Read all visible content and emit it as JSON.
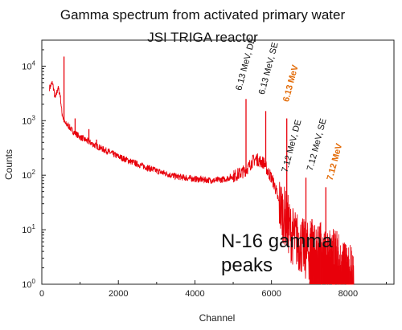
{
  "chart_data": {
    "type": "line",
    "title": "Gamma spectrum from activated primary water",
    "subtitle": "JSI TRIGA reactor",
    "xlabel": "Channel",
    "ylabel": "Counts",
    "xlim": [
      0,
      9200
    ],
    "ylim": [
      1,
      30000
    ],
    "yscale": "log",
    "grid": false,
    "x_ticks": [
      "0",
      "2000",
      "4000",
      "6000",
      "8000"
    ],
    "y_ticks": [
      {
        "base": "10",
        "exp": "0"
      },
      {
        "base": "10",
        "exp": "1"
      },
      {
        "base": "10",
        "exp": "2"
      },
      {
        "base": "10",
        "exp": "3"
      },
      {
        "base": "10",
        "exp": "4"
      }
    ],
    "series": [
      {
        "color": "#e8000b",
        "x": [
          200,
          280,
          350,
          420,
          480,
          520,
          560,
          600,
          700,
          800,
          1000,
          1200,
          1400,
          1600,
          2000,
          2500,
          3000,
          3500,
          4000,
          4500,
          4800,
          5000,
          5200,
          5300,
          5400,
          5500,
          5600,
          5700,
          5800,
          5900,
          6000,
          6100,
          6200,
          6300,
          6400,
          6500,
          6600,
          6700,
          6800,
          6900,
          7000,
          7200,
          7400,
          7600,
          7800,
          8000,
          8150
        ],
        "y": [
          4000,
          5000,
          2500,
          4000,
          3000,
          1500,
          1100,
          900,
          800,
          650,
          500,
          420,
          350,
          300,
          220,
          160,
          120,
          95,
          85,
          80,
          85,
          95,
          110,
          120,
          140,
          180,
          200,
          180,
          170,
          120,
          90,
          60,
          30,
          20,
          15,
          9,
          7,
          6,
          5,
          4,
          4,
          3.5,
          3,
          2.5,
          2,
          1.5,
          1
        ]
      }
    ],
    "peaks": [
      {
        "x": 580,
        "y": 15000
      },
      {
        "x": 870,
        "y": 1100
      },
      {
        "x": 1230,
        "y": 700
      },
      {
        "x": 1430,
        "y": 450
      },
      {
        "x": 5335,
        "y": 2500
      },
      {
        "x": 5850,
        "y": 1500
      },
      {
        "x": 6400,
        "y": 1100
      },
      {
        "x": 6900,
        "y": 90
      },
      {
        "x": 7420,
        "y": 60
      }
    ],
    "annotations": [
      {
        "text": "6.13 MeV, DE",
        "color": "#111111",
        "bold": false
      },
      {
        "text": "6.13 MeV, SE",
        "color": "#111111",
        "bold": false
      },
      {
        "text": "6.13 MeV",
        "color": "#e36c09",
        "bold": true
      },
      {
        "text": "7.12 MeV, DE",
        "color": "#111111",
        "bold": false
      },
      {
        "text": "7.12 MeV, SE",
        "color": "#111111",
        "bold": false
      },
      {
        "text": "7.12 MeV",
        "color": "#e36c09",
        "bold": true
      }
    ],
    "label_lines": [
      "N-16 gamma",
      "peaks"
    ]
  }
}
